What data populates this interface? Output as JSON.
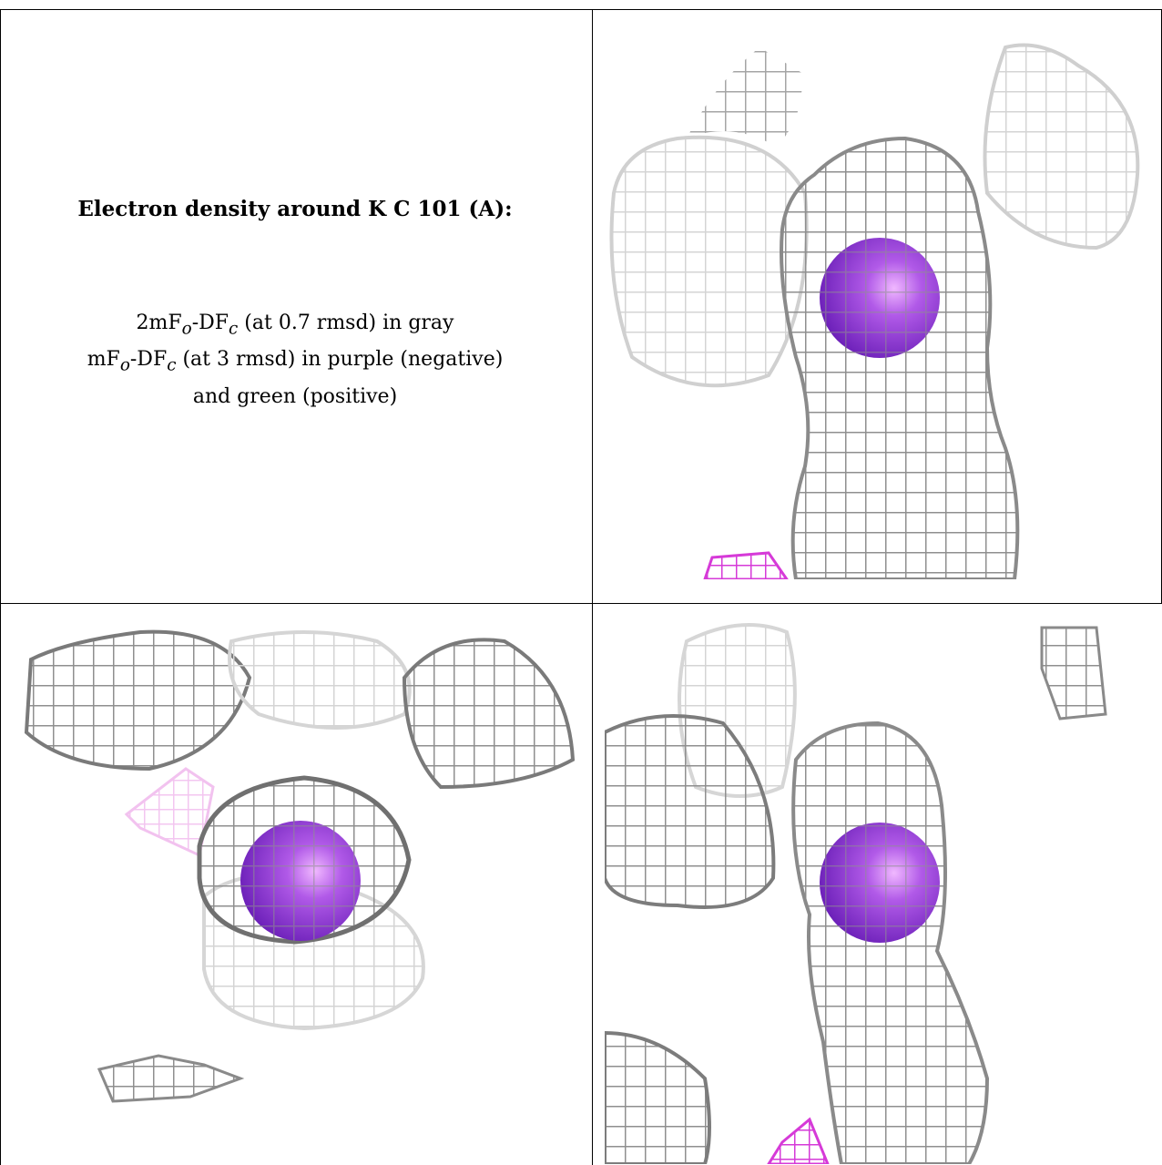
{
  "caption": {
    "title": "Electron density around K C 101 (A):",
    "line1": {
      "pre": "2mF",
      "sub1": "o",
      "mid": "-DF",
      "sub2": "c",
      "post": " (at 0.7 rmsd) in gray"
    },
    "line2": {
      "pre": "mF",
      "sub1": "o",
      "mid": "-DF",
      "sub2": "c",
      "post": " (at 3 rmsd) in purple (negative)"
    },
    "line3": "and green (positive)"
  },
  "colors": {
    "mesh_gray": "#8c8c8c",
    "mesh_light": "#cfcfcf",
    "atom_purple": "#8a3fd0",
    "negative_magenta": "#d63ad8"
  },
  "icons": [
    "potassium-atom-sphere",
    "density-mesh"
  ]
}
